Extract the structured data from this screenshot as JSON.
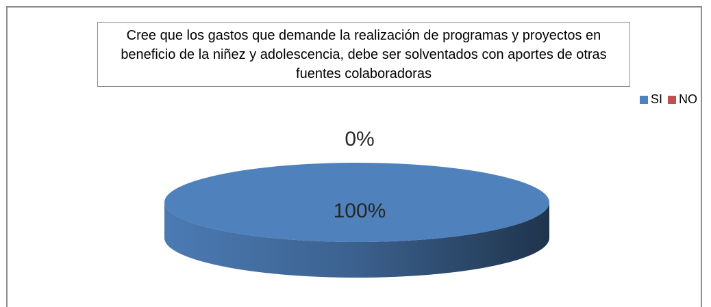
{
  "chart_data": {
    "type": "pie",
    "title": "Cree que los gastos que demande la realización de programas y proyectos en beneficio de la niñez y adolescencia, debe ser solventados con aportes de otras fuentes colaboradoras",
    "categories": [
      "SI",
      "NO"
    ],
    "values": [
      100,
      0
    ],
    "value_labels": [
      "100%",
      "0%"
    ],
    "colors": [
      "#4f81bd",
      "#c0504d"
    ],
    "legend": "top-right"
  }
}
